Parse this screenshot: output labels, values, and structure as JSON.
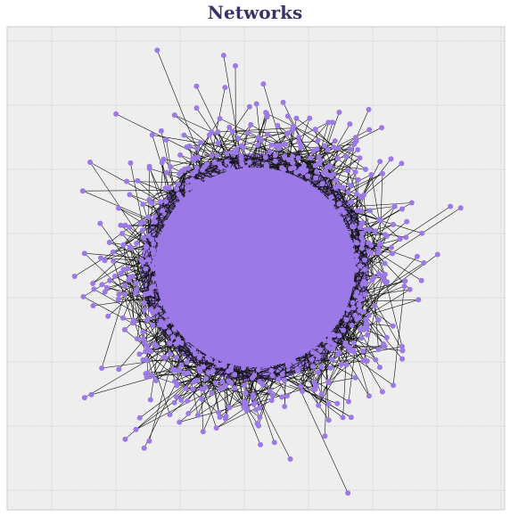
{
  "title": "Networks"
}
